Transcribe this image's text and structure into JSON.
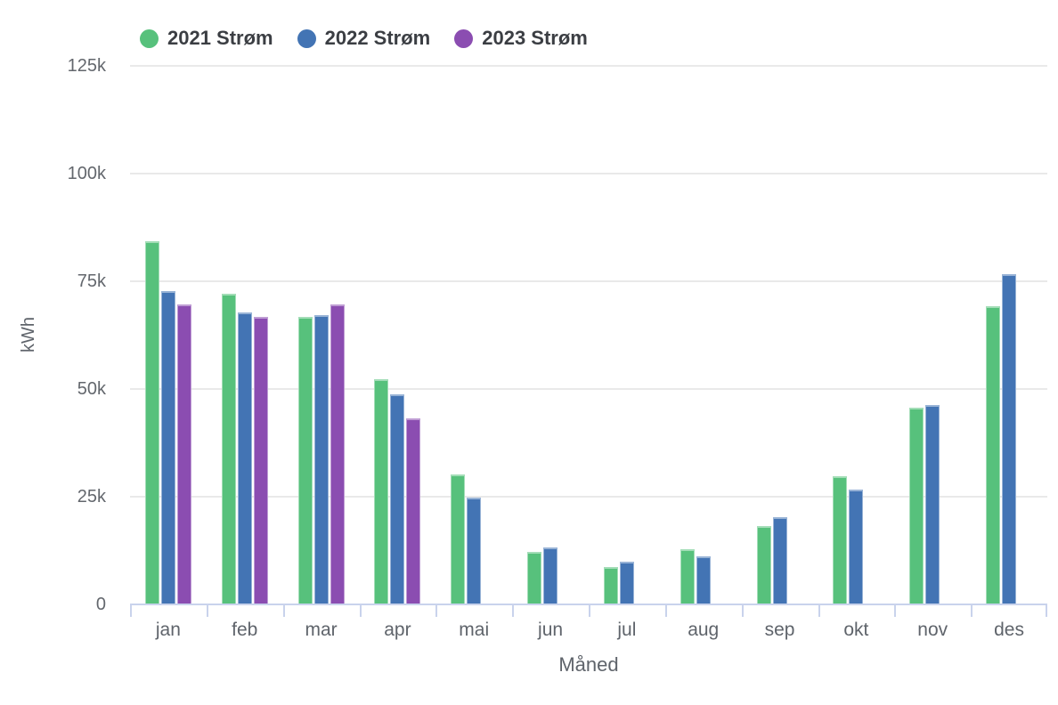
{
  "chart_data": {
    "type": "bar",
    "title": "",
    "xlabel": "Måned",
    "ylabel": "kWh",
    "ylim": [
      0,
      125000
    ],
    "ytick_labels": [
      "125k",
      "100k",
      "75k",
      "50k",
      "25k",
      "0"
    ],
    "grid": true,
    "legend_position": "top",
    "categories": [
      "jan",
      "feb",
      "mar",
      "apr",
      "mai",
      "jun",
      "jul",
      "aug",
      "sep",
      "okt",
      "nov",
      "des"
    ],
    "series": [
      {
        "name": "2021 Strøm",
        "color": "#57c17c",
        "values": [
          84000,
          72000,
          66500,
          52000,
          30000,
          12000,
          8500,
          12500,
          18000,
          29500,
          45500,
          69000
        ]
      },
      {
        "name": "2022 Strøm",
        "color": "#4374b4",
        "values": [
          72500,
          67500,
          67000,
          48500,
          24500,
          13000,
          9700,
          11000,
          20000,
          26500,
          46000,
          76500
        ]
      },
      {
        "name": "2023 Strøm",
        "color": "#8b4db1",
        "values": [
          69500,
          66500,
          69500,
          43000,
          null,
          null,
          null,
          null,
          null,
          null,
          null,
          null
        ]
      }
    ],
    "colors": {
      "axis_line": "#c9d3ec",
      "gridline": "#e9e9e9",
      "tick_label": "#63676d",
      "axis_title": "#5f646b",
      "legend_text": "#3b3e43",
      "background": "#ffffff"
    }
  }
}
